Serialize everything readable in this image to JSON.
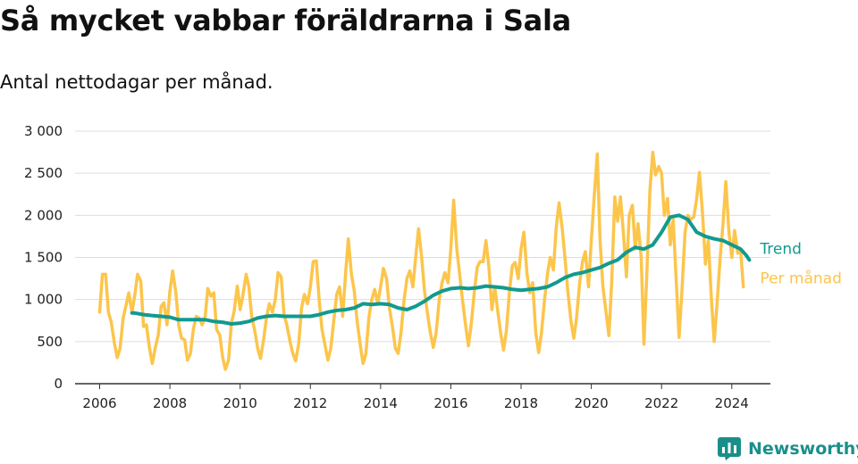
{
  "title": "Så mycket vabbar föräldrarna i Sala",
  "subtitle": "Antal nettodagar per månad.",
  "brand": {
    "name": "Newsworthy",
    "icon": "newsworthy-logo-icon"
  },
  "colors": {
    "monthly": "#fcc54b",
    "trend": "#119a8f",
    "grid": "#dddddd",
    "axis": "#333333"
  },
  "chart_data": {
    "type": "line",
    "title": "Så mycket vabbar föräldrarna i Sala",
    "subtitle": "Antal nettodagar per månad.",
    "xlabel": "",
    "ylabel": "",
    "xlim": [
      2005.3,
      2025.1
    ],
    "ylim": [
      0,
      3000
    ],
    "x_ticks": [
      2006,
      2008,
      2010,
      2012,
      2014,
      2016,
      2018,
      2020,
      2022,
      2024
    ],
    "y_ticks": [
      0,
      500,
      1000,
      1500,
      2000,
      2500,
      3000
    ],
    "y_tick_labels": [
      "0",
      "500",
      "1 000",
      "1 500",
      "2 000",
      "2 500",
      "3 000"
    ],
    "grid": "horizontal",
    "legend": "right, inline labels at line ends",
    "series": [
      {
        "name": "Per månad",
        "color": "#fcc54b",
        "points": [
          [
            2006.0,
            850
          ],
          [
            2006.08,
            1300
          ],
          [
            2006.17,
            1300
          ],
          [
            2006.25,
            850
          ],
          [
            2006.33,
            730
          ],
          [
            2006.42,
            480
          ],
          [
            2006.5,
            310
          ],
          [
            2006.58,
            420
          ],
          [
            2006.67,
            780
          ],
          [
            2006.75,
            930
          ],
          [
            2006.83,
            1080
          ],
          [
            2006.92,
            850
          ],
          [
            2007.0,
            1050
          ],
          [
            2007.08,
            1300
          ],
          [
            2007.17,
            1220
          ],
          [
            2007.25,
            680
          ],
          [
            2007.33,
            700
          ],
          [
            2007.42,
            420
          ],
          [
            2007.5,
            240
          ],
          [
            2007.58,
            420
          ],
          [
            2007.67,
            580
          ],
          [
            2007.75,
            920
          ],
          [
            2007.83,
            960
          ],
          [
            2007.92,
            700
          ],
          [
            2008.0,
            1100
          ],
          [
            2008.08,
            1340
          ],
          [
            2008.17,
            1080
          ],
          [
            2008.25,
            700
          ],
          [
            2008.33,
            540
          ],
          [
            2008.42,
            520
          ],
          [
            2008.5,
            280
          ],
          [
            2008.58,
            350
          ],
          [
            2008.67,
            650
          ],
          [
            2008.75,
            800
          ],
          [
            2008.83,
            780
          ],
          [
            2008.92,
            700
          ],
          [
            2009.0,
            780
          ],
          [
            2009.08,
            1130
          ],
          [
            2009.17,
            1040
          ],
          [
            2009.25,
            1080
          ],
          [
            2009.33,
            640
          ],
          [
            2009.42,
            580
          ],
          [
            2009.5,
            320
          ],
          [
            2009.58,
            170
          ],
          [
            2009.67,
            280
          ],
          [
            2009.75,
            720
          ],
          [
            2009.83,
            860
          ],
          [
            2009.92,
            1160
          ],
          [
            2010.0,
            880
          ],
          [
            2010.08,
            1050
          ],
          [
            2010.17,
            1300
          ],
          [
            2010.25,
            1150
          ],
          [
            2010.33,
            800
          ],
          [
            2010.42,
            620
          ],
          [
            2010.5,
            420
          ],
          [
            2010.58,
            300
          ],
          [
            2010.67,
            530
          ],
          [
            2010.75,
            780
          ],
          [
            2010.83,
            950
          ],
          [
            2010.92,
            850
          ],
          [
            2011.0,
            1000
          ],
          [
            2011.08,
            1320
          ],
          [
            2011.17,
            1270
          ],
          [
            2011.25,
            820
          ],
          [
            2011.33,
            700
          ],
          [
            2011.42,
            500
          ],
          [
            2011.5,
            360
          ],
          [
            2011.58,
            270
          ],
          [
            2011.67,
            480
          ],
          [
            2011.75,
            900
          ],
          [
            2011.83,
            1060
          ],
          [
            2011.92,
            950
          ],
          [
            2012.0,
            1150
          ],
          [
            2012.08,
            1450
          ],
          [
            2012.17,
            1460
          ],
          [
            2012.25,
            1000
          ],
          [
            2012.33,
            650
          ],
          [
            2012.42,
            450
          ],
          [
            2012.5,
            280
          ],
          [
            2012.58,
            420
          ],
          [
            2012.67,
            760
          ],
          [
            2012.75,
            1060
          ],
          [
            2012.83,
            1150
          ],
          [
            2012.92,
            800
          ],
          [
            2013.0,
            1300
          ],
          [
            2013.08,
            1720
          ],
          [
            2013.17,
            1300
          ],
          [
            2013.25,
            1100
          ],
          [
            2013.33,
            750
          ],
          [
            2013.42,
            460
          ],
          [
            2013.5,
            240
          ],
          [
            2013.58,
            350
          ],
          [
            2013.67,
            800
          ],
          [
            2013.75,
            1000
          ],
          [
            2013.83,
            1120
          ],
          [
            2013.92,
            950
          ],
          [
            2014.0,
            1150
          ],
          [
            2014.08,
            1370
          ],
          [
            2014.17,
            1250
          ],
          [
            2014.25,
            900
          ],
          [
            2014.33,
            700
          ],
          [
            2014.42,
            420
          ],
          [
            2014.5,
            360
          ],
          [
            2014.58,
            600
          ],
          [
            2014.67,
            1000
          ],
          [
            2014.75,
            1250
          ],
          [
            2014.83,
            1340
          ],
          [
            2014.92,
            1150
          ],
          [
            2015.0,
            1500
          ],
          [
            2015.08,
            1840
          ],
          [
            2015.17,
            1500
          ],
          [
            2015.25,
            1100
          ],
          [
            2015.33,
            850
          ],
          [
            2015.42,
            600
          ],
          [
            2015.5,
            430
          ],
          [
            2015.58,
            600
          ],
          [
            2015.67,
            1000
          ],
          [
            2015.75,
            1200
          ],
          [
            2015.83,
            1320
          ],
          [
            2015.92,
            1200
          ],
          [
            2016.0,
            1600
          ],
          [
            2016.08,
            2180
          ],
          [
            2016.17,
            1600
          ],
          [
            2016.25,
            1300
          ],
          [
            2016.33,
            1000
          ],
          [
            2016.42,
            700
          ],
          [
            2016.5,
            450
          ],
          [
            2016.58,
            700
          ],
          [
            2016.67,
            1100
          ],
          [
            2016.75,
            1380
          ],
          [
            2016.83,
            1450
          ],
          [
            2016.92,
            1450
          ],
          [
            2017.0,
            1700
          ],
          [
            2017.08,
            1400
          ],
          [
            2017.17,
            880
          ],
          [
            2017.25,
            1150
          ],
          [
            2017.33,
            880
          ],
          [
            2017.42,
            600
          ],
          [
            2017.5,
            400
          ],
          [
            2017.58,
            620
          ],
          [
            2017.67,
            1100
          ],
          [
            2017.75,
            1400
          ],
          [
            2017.83,
            1440
          ],
          [
            2017.92,
            1250
          ],
          [
            2018.0,
            1600
          ],
          [
            2018.08,
            1800
          ],
          [
            2018.17,
            1300
          ],
          [
            2018.25,
            1080
          ],
          [
            2018.33,
            1200
          ],
          [
            2018.42,
            600
          ],
          [
            2018.5,
            370
          ],
          [
            2018.58,
            600
          ],
          [
            2018.67,
            1000
          ],
          [
            2018.75,
            1300
          ],
          [
            2018.83,
            1500
          ],
          [
            2018.92,
            1350
          ],
          [
            2019.0,
            1850
          ],
          [
            2019.08,
            2150
          ],
          [
            2019.17,
            1850
          ],
          [
            2019.25,
            1500
          ],
          [
            2019.33,
            1100
          ],
          [
            2019.42,
            750
          ],
          [
            2019.5,
            540
          ],
          [
            2019.58,
            780
          ],
          [
            2019.67,
            1200
          ],
          [
            2019.75,
            1450
          ],
          [
            2019.83,
            1570
          ],
          [
            2019.92,
            1150
          ],
          [
            2020.0,
            1700
          ],
          [
            2020.08,
            2200
          ],
          [
            2020.17,
            2730
          ],
          [
            2020.25,
            1700
          ],
          [
            2020.33,
            1150
          ],
          [
            2020.42,
            850
          ],
          [
            2020.5,
            570
          ],
          [
            2020.58,
            1200
          ],
          [
            2020.67,
            2220
          ],
          [
            2020.75,
            1930
          ],
          [
            2020.83,
            2220
          ],
          [
            2020.92,
            1750
          ],
          [
            2021.0,
            1270
          ],
          [
            2021.08,
            2000
          ],
          [
            2021.17,
            2120
          ],
          [
            2021.25,
            1600
          ],
          [
            2021.33,
            1900
          ],
          [
            2021.42,
            1500
          ],
          [
            2021.5,
            470
          ],
          [
            2021.58,
            1300
          ],
          [
            2021.67,
            2300
          ],
          [
            2021.75,
            2750
          ],
          [
            2021.83,
            2480
          ],
          [
            2021.92,
            2580
          ],
          [
            2022.0,
            2500
          ],
          [
            2022.08,
            2000
          ],
          [
            2022.17,
            2200
          ],
          [
            2022.25,
            1650
          ],
          [
            2022.33,
            1950
          ],
          [
            2022.42,
            1200
          ],
          [
            2022.5,
            550
          ],
          [
            2022.58,
            1100
          ],
          [
            2022.67,
            1800
          ],
          [
            2022.75,
            2000
          ],
          [
            2022.83,
            1950
          ],
          [
            2022.92,
            1980
          ],
          [
            2023.0,
            2200
          ],
          [
            2023.08,
            2510
          ],
          [
            2023.17,
            2000
          ],
          [
            2023.25,
            1420
          ],
          [
            2023.33,
            1700
          ],
          [
            2023.42,
            1000
          ],
          [
            2023.5,
            500
          ],
          [
            2023.58,
            950
          ],
          [
            2023.67,
            1500
          ],
          [
            2023.75,
            1900
          ],
          [
            2023.83,
            2400
          ],
          [
            2023.92,
            1800
          ],
          [
            2024.0,
            1500
          ],
          [
            2024.08,
            1820
          ],
          [
            2024.17,
            1550
          ],
          [
            2024.25,
            1600
          ],
          [
            2024.33,
            1150
          ]
        ]
      },
      {
        "name": "Trend",
        "color": "#119a8f",
        "points": [
          [
            2006.92,
            840
          ],
          [
            2007.0,
            840
          ],
          [
            2007.25,
            820
          ],
          [
            2007.5,
            810
          ],
          [
            2007.75,
            800
          ],
          [
            2008.0,
            790
          ],
          [
            2008.25,
            760
          ],
          [
            2008.5,
            760
          ],
          [
            2008.75,
            760
          ],
          [
            2009.0,
            760
          ],
          [
            2009.25,
            740
          ],
          [
            2009.5,
            730
          ],
          [
            2009.75,
            710
          ],
          [
            2010.0,
            720
          ],
          [
            2010.25,
            740
          ],
          [
            2010.5,
            780
          ],
          [
            2010.75,
            800
          ],
          [
            2011.0,
            810
          ],
          [
            2011.25,
            800
          ],
          [
            2011.5,
            800
          ],
          [
            2011.75,
            800
          ],
          [
            2012.0,
            800
          ],
          [
            2012.25,
            820
          ],
          [
            2012.5,
            850
          ],
          [
            2012.75,
            870
          ],
          [
            2013.0,
            880
          ],
          [
            2013.25,
            900
          ],
          [
            2013.5,
            950
          ],
          [
            2013.75,
            940
          ],
          [
            2014.0,
            950
          ],
          [
            2014.25,
            940
          ],
          [
            2014.5,
            900
          ],
          [
            2014.75,
            880
          ],
          [
            2015.0,
            920
          ],
          [
            2015.25,
            980
          ],
          [
            2015.5,
            1050
          ],
          [
            2015.75,
            1100
          ],
          [
            2016.0,
            1130
          ],
          [
            2016.25,
            1140
          ],
          [
            2016.5,
            1130
          ],
          [
            2016.75,
            1140
          ],
          [
            2017.0,
            1160
          ],
          [
            2017.25,
            1150
          ],
          [
            2017.5,
            1140
          ],
          [
            2017.75,
            1120
          ],
          [
            2018.0,
            1110
          ],
          [
            2018.25,
            1120
          ],
          [
            2018.5,
            1130
          ],
          [
            2018.75,
            1150
          ],
          [
            2019.0,
            1200
          ],
          [
            2019.25,
            1260
          ],
          [
            2019.5,
            1300
          ],
          [
            2019.75,
            1320
          ],
          [
            2020.0,
            1350
          ],
          [
            2020.25,
            1380
          ],
          [
            2020.5,
            1430
          ],
          [
            2020.75,
            1470
          ],
          [
            2021.0,
            1560
          ],
          [
            2021.25,
            1620
          ],
          [
            2021.5,
            1600
          ],
          [
            2021.75,
            1650
          ],
          [
            2022.0,
            1800
          ],
          [
            2022.25,
            1980
          ],
          [
            2022.5,
            2000
          ],
          [
            2022.75,
            1950
          ],
          [
            2023.0,
            1800
          ],
          [
            2023.25,
            1750
          ],
          [
            2023.5,
            1720
          ],
          [
            2023.75,
            1700
          ],
          [
            2024.0,
            1650
          ],
          [
            2024.25,
            1600
          ],
          [
            2024.42,
            1520
          ],
          [
            2024.5,
            1470
          ]
        ]
      }
    ]
  }
}
